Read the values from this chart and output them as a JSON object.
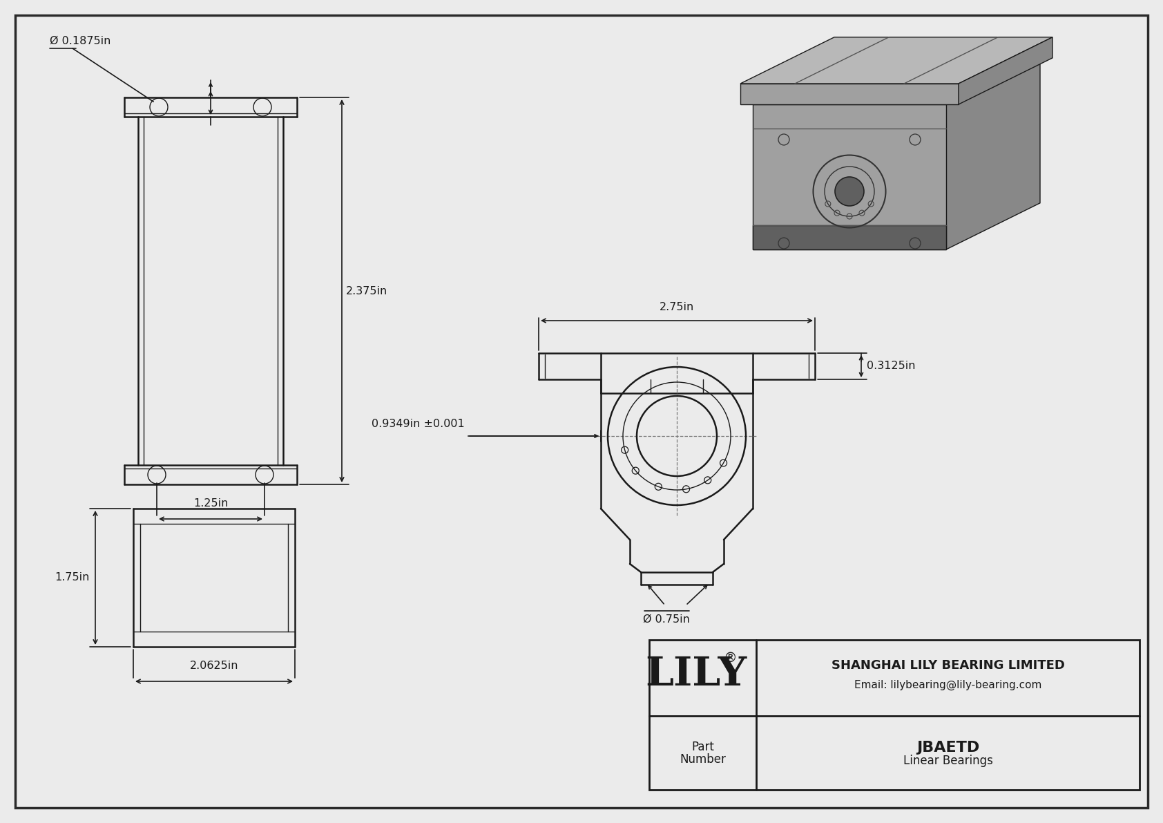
{
  "bg_color": "#ebebeb",
  "line_color": "#1a1a1a",
  "title_company": "SHANGHAI LILY BEARING LIMITED",
  "title_email": "Email: lilybearing@lily-bearing.com",
  "part_number": "JBAETD",
  "part_type": "Linear Bearings",
  "dim_hole": "Ø 0.1875in",
  "dim_height_front": "2.375in",
  "dim_width_bottom": "1.25in",
  "dim_height_side": "1.75in",
  "dim_width_side": "2.0625in",
  "dim_total_width": "2.75in",
  "dim_flange_depth": "0.3125in",
  "dim_bore_offset": "0.9349in ±0.001",
  "dim_bore": "Ø 0.75in",
  "iso_top_color": "#b8b8b8",
  "iso_front_color": "#a0a0a0",
  "iso_right_color": "#888888",
  "iso_dark_color": "#606060"
}
